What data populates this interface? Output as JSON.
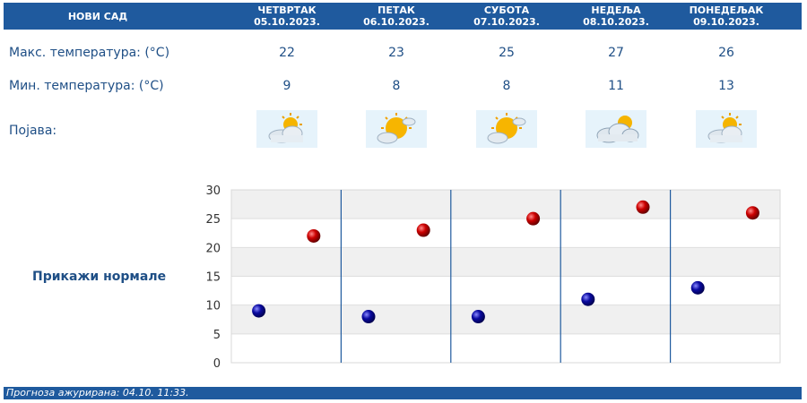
{
  "header": {
    "city": "НОВИ САД",
    "days": [
      {
        "name": "ЧЕТВРТАК",
        "date": "05.10.2023."
      },
      {
        "name": "ПЕТАК",
        "date": "06.10.2023."
      },
      {
        "name": "СУБОТА",
        "date": "07.10.2023."
      },
      {
        "name": "НЕДЕЉА",
        "date": "08.10.2023."
      },
      {
        "name": "ПОНЕДЕЉАК",
        "date": "09.10.2023."
      }
    ]
  },
  "rows": {
    "max_label": "Макс. температура: (°C)",
    "min_label": "Мин. температура: (°C)",
    "phenomenon_label": "Појава:"
  },
  "forecast": [
    {
      "max": "22",
      "min": "9",
      "icon": "partly-cloudy-icon"
    },
    {
      "max": "23",
      "min": "8",
      "icon": "mostly-sunny-icon"
    },
    {
      "max": "25",
      "min": "8",
      "icon": "mostly-sunny-icon"
    },
    {
      "max": "27",
      "min": "11",
      "icon": "cloudy-sun-icon"
    },
    {
      "max": "26",
      "min": "13",
      "icon": "partly-cloudy-icon"
    }
  ],
  "show_normals": "Прикажи нормале",
  "footer": "Прогноза ажурирана:  04.10. 11:33.",
  "chart_data": {
    "type": "scatter",
    "categories": [
      "05.10.2023.",
      "06.10.2023.",
      "07.10.2023.",
      "08.10.2023.",
      "09.10.2023."
    ],
    "series": [
      {
        "values": [
          22,
          23,
          25,
          27,
          26
        ],
        "color": "#cc0000"
      },
      {
        "values": [
          9,
          8,
          8,
          11,
          13
        ],
        "color": "#0a0aa0"
      }
    ],
    "yticks": [
      0,
      5,
      10,
      15,
      20,
      25,
      30
    ],
    "ylim": [
      0,
      30
    ],
    "grid": true,
    "band_colors": [
      "#ffffff",
      "#f0f0f0"
    ],
    "divider_color": "#1f5a9e"
  },
  "colors": {
    "header_bg": "#1f5a9e",
    "text": "#1f4f86"
  }
}
